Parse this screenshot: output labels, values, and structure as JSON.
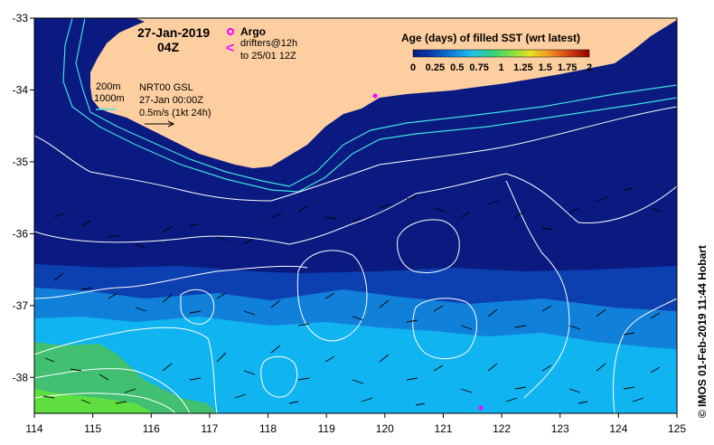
{
  "title": {
    "date": "27-Jan-2019",
    "time": "04Z"
  },
  "legend_argo": {
    "label": "Argo",
    "marker_color": "#ff00ff",
    "drifters_line1": "drifters@12h",
    "drifters_line2": "to 25/01 12Z"
  },
  "colorbar": {
    "title": "Age (days) of filled SST (wrt latest)",
    "ticks": [
      "0",
      "0.25",
      "0.5",
      "0.75",
      "1",
      "1.25",
      "1.5",
      "1.75",
      "2"
    ],
    "colors": [
      "#0a1a80",
      "#0c3fb0",
      "#1080d8",
      "#20c0e8",
      "#30d080",
      "#80e040",
      "#e8e020",
      "#f09020",
      "#d04010",
      "#900000"
    ]
  },
  "isobaths": {
    "line1": "200m",
    "line2": "1000m"
  },
  "currents_info": {
    "line1": "NRT00 GSL",
    "line2": "27-Jan 00:00Z",
    "line3": "0.5m/s (1kt 24h)"
  },
  "axes": {
    "x_ticks": [
      "114",
      "115",
      "116",
      "117",
      "118",
      "119",
      "120",
      "121",
      "122",
      "123",
      "124",
      "125"
    ],
    "y_ticks": [
      "-33",
      "-34",
      "-35",
      "-36",
      "-37",
      "-38"
    ]
  },
  "credit": "© IMOS 01-Feb-2019 11:44 Hobart",
  "colors": {
    "land": "#fdcfa0",
    "ocean_age0": "#0a1a80",
    "ocean_age_low": "#0c3fb0",
    "ocean_age_mid": "#1080d8",
    "ocean_age_high": "#10b4f0",
    "isobath": "#40e0e0",
    "sst_contour": "#ffffff"
  },
  "markers": [
    {
      "name": "argo-float",
      "lon": 119.85,
      "lat": -34.08
    },
    {
      "name": "argo-float",
      "lon": 121.65,
      "lat": -38.4
    }
  ]
}
